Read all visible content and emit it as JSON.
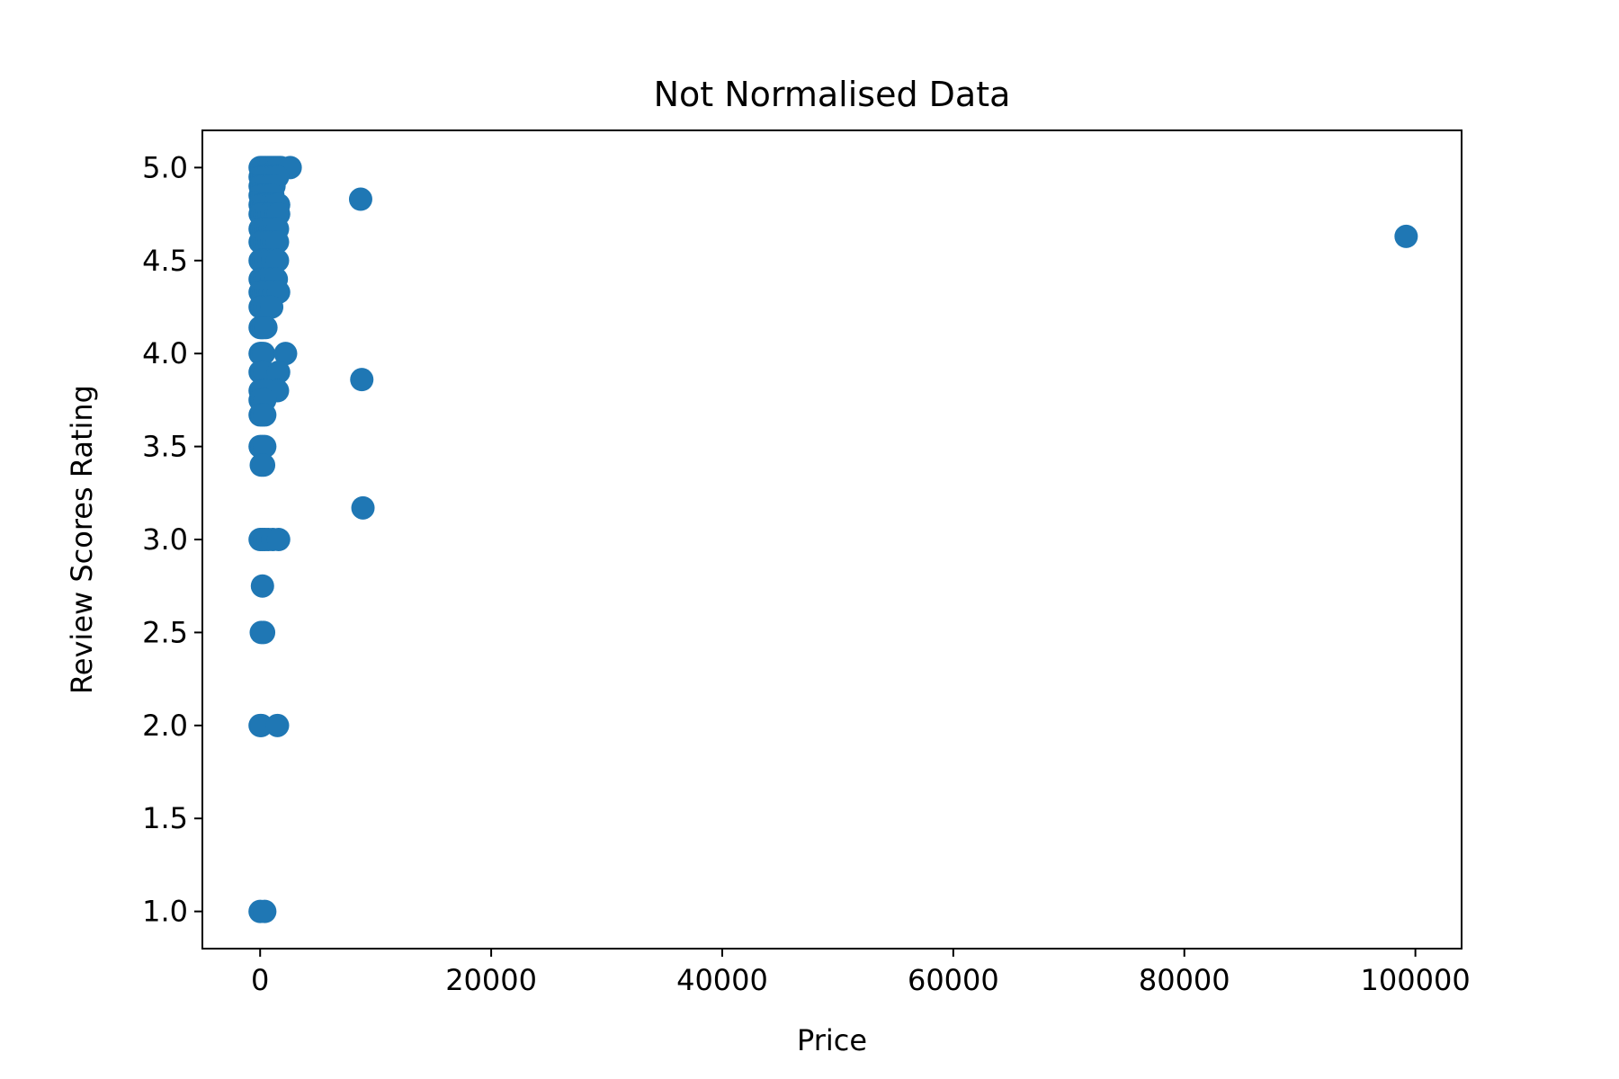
{
  "chart_data": {
    "type": "scatter",
    "title": "Not Normalised Data",
    "xlabel": "Price",
    "ylabel": "Review Scores Rating",
    "xlim": [
      -5000,
      104000
    ],
    "ylim": [
      0.8,
      5.2
    ],
    "xticks": [
      {
        "value": 0,
        "label": "0"
      },
      {
        "value": 20000,
        "label": "20000"
      },
      {
        "value": 40000,
        "label": "40000"
      },
      {
        "value": 60000,
        "label": "60000"
      },
      {
        "value": 80000,
        "label": "80000"
      },
      {
        "value": 100000,
        "label": "100000"
      }
    ],
    "yticks": [
      {
        "value": 1.0,
        "label": "1.0"
      },
      {
        "value": 1.5,
        "label": "1.5"
      },
      {
        "value": 2.0,
        "label": "2.0"
      },
      {
        "value": 2.5,
        "label": "2.5"
      },
      {
        "value": 3.0,
        "label": "3.0"
      },
      {
        "value": 3.5,
        "label": "3.5"
      },
      {
        "value": 4.0,
        "label": "4.0"
      },
      {
        "value": 4.5,
        "label": "4.5"
      },
      {
        "value": 5.0,
        "label": "5.0"
      }
    ],
    "grid": false,
    "color": "#1f77b4",
    "series": [
      {
        "x": [
          0,
          100,
          200,
          300,
          400,
          500,
          600,
          700,
          800,
          900,
          1000,
          1100,
          1200,
          1300,
          1400,
          1500,
          1600,
          1700,
          1800,
          2600,
          0,
          100,
          200,
          300,
          400,
          500,
          700,
          900,
          1100,
          1300,
          1500,
          0,
          100,
          200,
          300,
          400,
          600,
          800,
          1000,
          1200,
          0,
          100,
          200,
          300,
          500,
          700,
          900,
          1100,
          0,
          100,
          200,
          300,
          400,
          600,
          800,
          1000,
          1200,
          1400,
          1600,
          0,
          100,
          200,
          400,
          600,
          800,
          1000,
          1400,
          1600,
          0,
          100,
          200,
          300,
          500,
          700,
          900,
          1100,
          1300,
          1500,
          0,
          100,
          200,
          400,
          600,
          800,
          1000,
          1200,
          1500,
          0,
          100,
          200,
          300,
          500,
          800,
          1100,
          1500,
          0,
          100,
          200,
          400,
          600,
          1000,
          1400,
          0,
          100,
          200,
          300,
          500,
          700,
          900,
          1200,
          1600,
          0,
          100,
          200,
          400,
          700,
          1000,
          0,
          100,
          200,
          300,
          500,
          0,
          100,
          300,
          2200,
          0,
          100,
          200,
          400,
          1600,
          0,
          100,
          300,
          500,
          1500,
          0,
          100,
          200,
          400,
          0,
          200,
          400,
          0,
          200,
          400,
          100,
          300,
          0,
          200,
          400,
          700,
          1100,
          1600,
          200,
          100,
          300,
          0,
          100,
          1500,
          0,
          400,
          8700,
          8800,
          8900,
          99200
        ],
        "y": [
          5.0,
          5.0,
          5.0,
          5.0,
          5.0,
          5.0,
          5.0,
          5.0,
          5.0,
          5.0,
          5.0,
          5.0,
          5.0,
          5.0,
          5.0,
          5.0,
          5.0,
          5.0,
          5.0,
          5.0,
          4.95,
          4.95,
          4.95,
          4.95,
          4.95,
          4.95,
          4.95,
          4.95,
          4.95,
          4.95,
          4.95,
          4.9,
          4.9,
          4.9,
          4.9,
          4.9,
          4.9,
          4.9,
          4.9,
          4.9,
          4.85,
          4.85,
          4.85,
          4.85,
          4.85,
          4.85,
          4.85,
          4.85,
          4.8,
          4.8,
          4.8,
          4.8,
          4.8,
          4.8,
          4.8,
          4.8,
          4.8,
          4.8,
          4.8,
          4.75,
          4.75,
          4.75,
          4.75,
          4.75,
          4.75,
          4.75,
          4.75,
          4.75,
          4.67,
          4.67,
          4.67,
          4.67,
          4.67,
          4.67,
          4.67,
          4.67,
          4.67,
          4.67,
          4.6,
          4.6,
          4.6,
          4.6,
          4.6,
          4.6,
          4.6,
          4.6,
          4.6,
          4.5,
          4.5,
          4.5,
          4.5,
          4.5,
          4.5,
          4.5,
          4.5,
          4.4,
          4.4,
          4.4,
          4.4,
          4.4,
          4.4,
          4.4,
          4.33,
          4.33,
          4.33,
          4.33,
          4.33,
          4.33,
          4.33,
          4.33,
          4.33,
          4.25,
          4.25,
          4.25,
          4.25,
          4.25,
          4.25,
          4.14,
          4.14,
          4.14,
          4.14,
          4.14,
          4.0,
          4.0,
          4.0,
          4.0,
          3.9,
          3.9,
          3.9,
          3.9,
          3.9,
          3.8,
          3.8,
          3.8,
          3.8,
          3.8,
          3.75,
          3.75,
          3.75,
          3.75,
          3.67,
          3.67,
          3.67,
          3.5,
          3.5,
          3.5,
          3.4,
          3.4,
          3.0,
          3.0,
          3.0,
          3.0,
          3.0,
          3.0,
          2.75,
          2.5,
          2.5,
          2.0,
          2.0,
          2.0,
          1.0,
          1.0,
          4.83,
          3.86,
          3.17,
          4.63
        ]
      }
    ]
  }
}
